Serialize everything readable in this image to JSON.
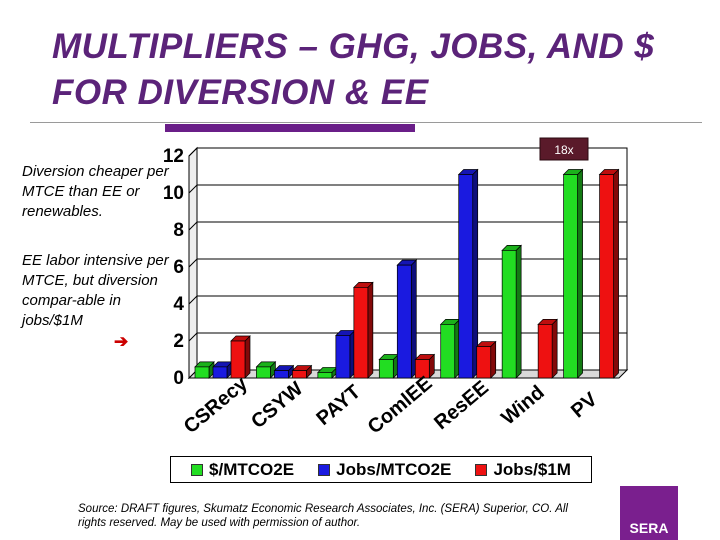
{
  "title": "MULTIPLIERS – GHG, JOBS, AND $ FOR DIVERSION & EE",
  "notes": {
    "note1": "Diversion cheaper per MTCE than EE or renewables.",
    "note2": "EE labor intensive per MTCE, but diversion compar-able in jobs/$1M",
    "arrow": "➔"
  },
  "source": "Source:  DRAFT figures, Skumatz Economic Research Associates, Inc. (SERA) Superior, CO.  All rights reserved.  May be used with permission of author.",
  "logo": "SERA",
  "colors": {
    "green": "#22dd22",
    "blue": "#1a1ae0",
    "red": "#ee1111",
    "purple": "#5b2379"
  },
  "chart_data": {
    "type": "bar",
    "categories": [
      "CSRecy",
      "CSYW",
      "PAYT",
      "ComlEE",
      "ResEE",
      "Wind",
      "PV"
    ],
    "series": [
      {
        "name": "$/MTCO2E",
        "color": "#22dd22",
        "values": [
          0.6,
          0.6,
          0.3,
          1.0,
          2.9,
          6.9,
          11.0
        ]
      },
      {
        "name": "Jobs/MTCO2E",
        "color": "#1a1ae0",
        "values": [
          0.6,
          0.4,
          2.3,
          6.1,
          11.0,
          null,
          null
        ]
      },
      {
        "name": "Jobs/$1M",
        "color": "#ee1111",
        "values": [
          2.0,
          0.4,
          4.9,
          1.0,
          1.7,
          2.9,
          11.0
        ]
      }
    ],
    "ylim": [
      0,
      12
    ],
    "yticks": [
      "0",
      "2",
      "4",
      "6",
      "8",
      "10",
      "12"
    ],
    "annotation": "18x",
    "grid": true,
    "legend": "bottom"
  }
}
